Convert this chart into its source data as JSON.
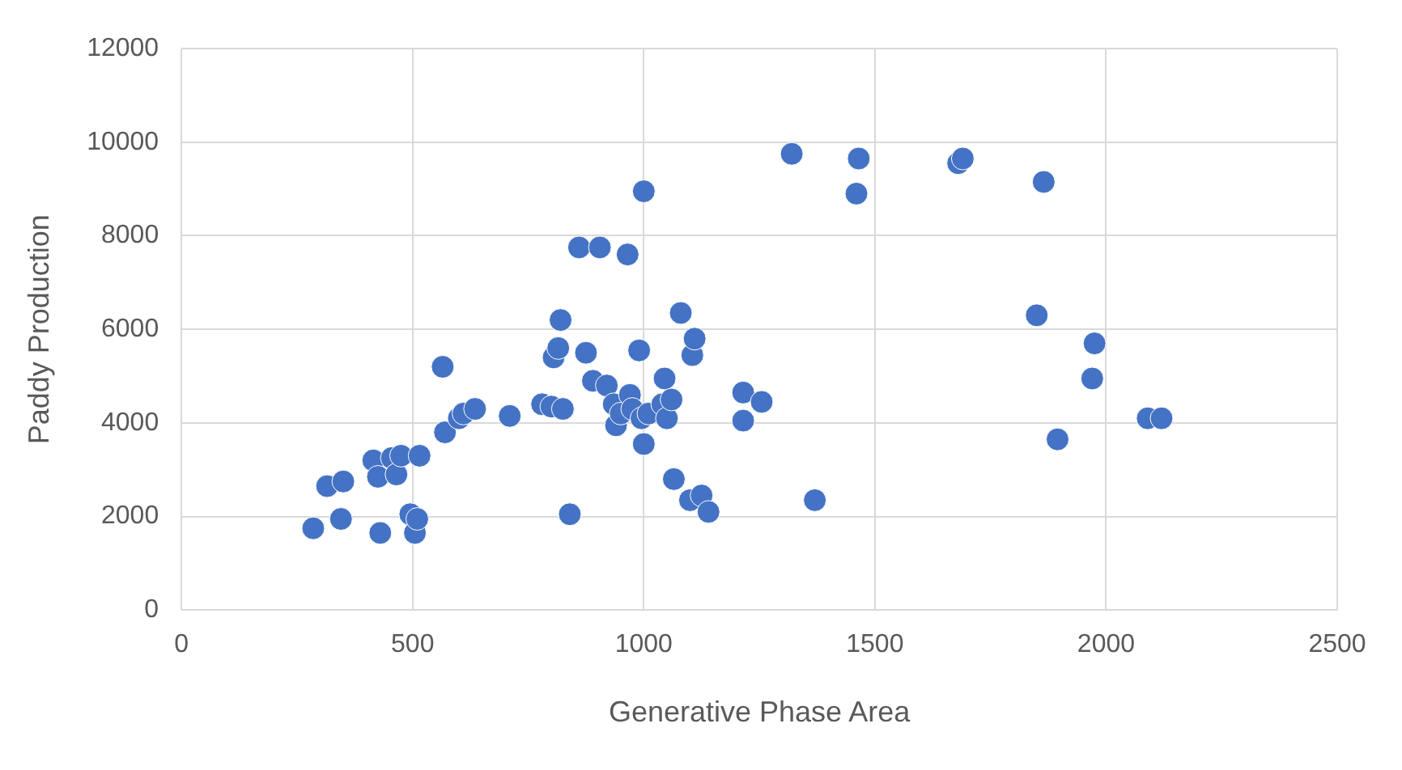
{
  "chart_data": {
    "type": "scatter",
    "xlabel": "Generative Phase Area",
    "ylabel": "Paddy Production",
    "xlim": [
      0,
      2500
    ],
    "xticks": [
      0,
      500,
      1000,
      1500,
      2000,
      2500
    ],
    "ylim": [
      0,
      12000
    ],
    "yticks": [
      0,
      2000,
      4000,
      6000,
      8000,
      10000,
      12000
    ],
    "grid": true,
    "legend": false,
    "marker": "circle",
    "series": [
      {
        "color": "#4472c4",
        "x": [
          285,
          315,
          345,
          350,
          415,
          425,
          430,
          455,
          465,
          475,
          495,
          505,
          510,
          515,
          565,
          570,
          600,
          610,
          635,
          710,
          780,
          800,
          805,
          815,
          820,
          825,
          840,
          860,
          875,
          890,
          905,
          920,
          935,
          940,
          950,
          965,
          970,
          975,
          990,
          995,
          1000,
          1000,
          1010,
          1040,
          1045,
          1050,
          1060,
          1065,
          1080,
          1100,
          1105,
          1110,
          1125,
          1140,
          1215,
          1215,
          1255,
          1320,
          1370,
          1460,
          1465,
          1680,
          1690,
          1865,
          1850,
          1975,
          1970,
          1895,
          2090,
          2120
        ],
        "values": [
          1750,
          2650,
          1950,
          2750,
          3200,
          2850,
          1650,
          3250,
          2900,
          3300,
          2050,
          1650,
          1950,
          3300,
          5200,
          3800,
          4100,
          4200,
          4300,
          4150,
          4400,
          4350,
          5400,
          5600,
          6200,
          4300,
          2050,
          7750,
          5500,
          4900,
          7750,
          4800,
          4400,
          3950,
          4200,
          7600,
          4600,
          4300,
          5550,
          4100,
          3550,
          8950,
          4200,
          4400,
          4950,
          4100,
          4500,
          2800,
          6350,
          2350,
          5450,
          5800,
          2450,
          2100,
          4650,
          4050,
          4450,
          9750,
          2350,
          8900,
          9650,
          9550,
          9650,
          9150,
          6300,
          5700,
          4950,
          3650,
          4100,
          4100
        ]
      }
    ]
  }
}
